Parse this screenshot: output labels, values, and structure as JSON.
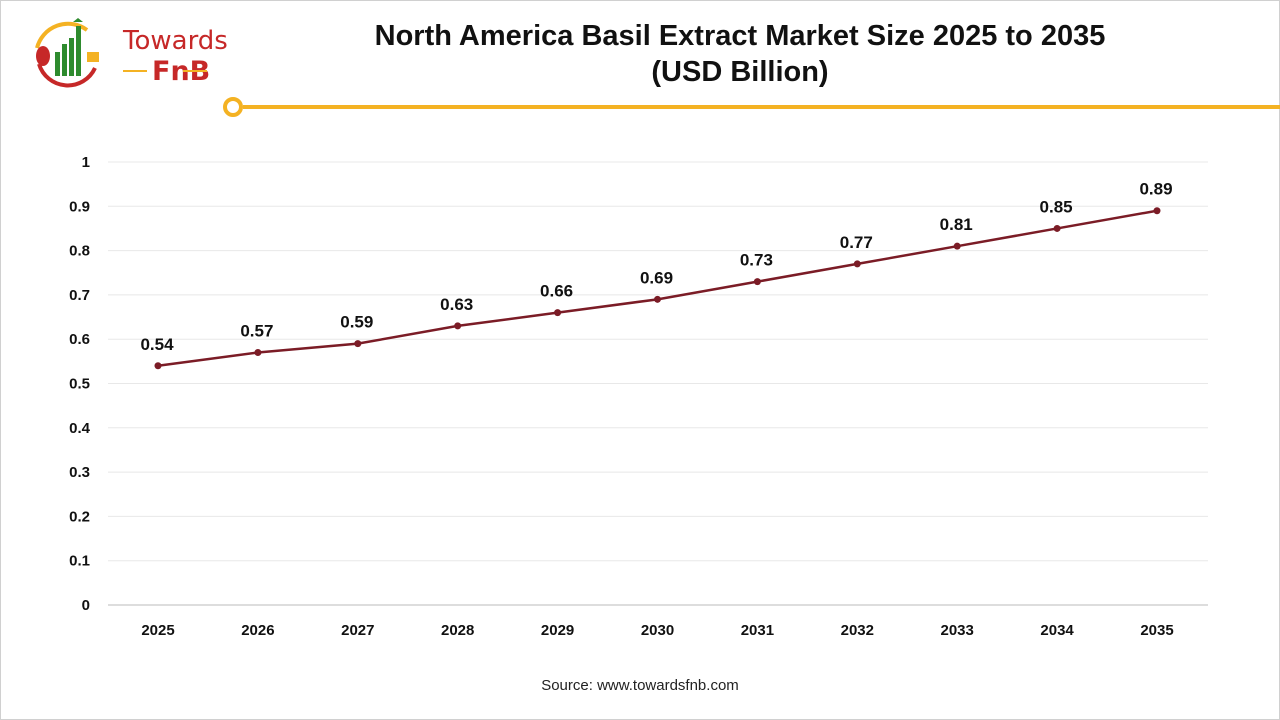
{
  "brand": {
    "logo_text_line1": "Towards",
    "logo_text_line2": "FnB",
    "accent_color": "#f4b223",
    "logo_red": "#c62828",
    "logo_green": "#2e8b2e"
  },
  "source": "Source: www.towardsfnb.com",
  "chart_data": {
    "type": "line",
    "title": "North America Basil Extract Market Size 2025 to 2035",
    "subtitle": "(USD Billion)",
    "xlabel": "",
    "ylabel": "",
    "categories": [
      "2025",
      "2026",
      "2027",
      "2028",
      "2029",
      "2030",
      "2031",
      "2032",
      "2033",
      "2034",
      "2035"
    ],
    "values": [
      0.54,
      0.57,
      0.59,
      0.63,
      0.66,
      0.69,
      0.73,
      0.77,
      0.81,
      0.85,
      0.89
    ],
    "ylim": [
      0,
      1
    ],
    "yticks": [
      "0",
      "0.1",
      "0.2",
      "0.3",
      "0.4",
      "0.5",
      "0.6",
      "0.7",
      "0.8",
      "0.9",
      "1"
    ],
    "grid": true,
    "line_color": "#7b1c26",
    "data_labels": true
  }
}
